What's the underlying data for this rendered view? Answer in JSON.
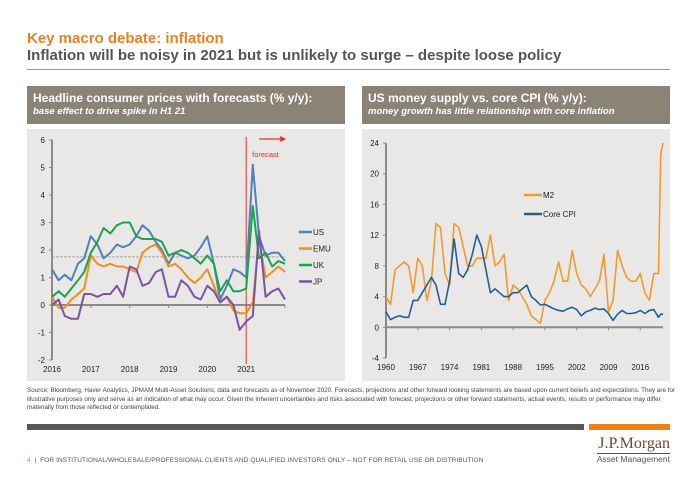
{
  "header": {
    "title": "Key macro debate: inflation",
    "subtitle": "Inflation will be noisy in 2021 but is unlikely to surge – despite loose policy"
  },
  "panels": [
    {
      "heading": "Headline consumer prices with forecasts (% y/y):",
      "subheading": "base effect to drive spike in H1 21"
    },
    {
      "heading": "US money supply vs. core CPI (% y/y):",
      "subheading": "money growth has little relationship with core inflation"
    }
  ],
  "source_note": "Source: Bloomberg, Haver Analytics, JPMAM Multi-Asset Solutions; data and forecasts as of November 2020. Forecasts, projections and other forward looking statements are based upon current beliefs and expectations. They are for illustrative purposes only and serve as an indication of what may occur. Given the inherent uncertainties and risks associated with forecast, projections or other forward statements, actual events, results or performance may differ materially from those reflected or contemplated.",
  "footer": {
    "page_number": "4",
    "separator": "|",
    "disclaimer": "FOR INSTITUTIONAL/WHOLESALE/PROFESSIONAL CLIENTS AND QUALIFIED INVESTORS ONLY – NOT FOR RETAIL USE OR DISTRIBUTION"
  },
  "logo": {
    "brand": "J.P.Morgan",
    "division": "Asset Management"
  },
  "colors": {
    "accent": "#e8821e",
    "panel_header": "#8c8377",
    "panel_bg": "#e9e8e6"
  },
  "chart_data": [
    {
      "type": "line",
      "title": "Headline consumer prices with forecasts (% y/y)",
      "subtitle": "base effect to drive spike in H1 21",
      "xlabel": "",
      "ylabel": "",
      "xlim": [
        2016,
        2022
      ],
      "ylim": [
        -2,
        6
      ],
      "yticks": [
        -2,
        -1,
        0,
        1,
        2,
        3,
        4,
        5,
        6
      ],
      "xticks": [
        2016,
        2017,
        2018,
        2019,
        2020,
        2021
      ],
      "reference_line": {
        "y": 1.75,
        "style": "dashed",
        "color": "#aaaaaa"
      },
      "forecast_marker": {
        "x": 2021.0,
        "label": "forecast",
        "color": "#e8322e"
      },
      "legend": "right",
      "grid": false,
      "x": [
        2016.0,
        2016.17,
        2016.33,
        2016.5,
        2016.67,
        2016.83,
        2017.0,
        2017.17,
        2017.33,
        2017.5,
        2017.67,
        2017.83,
        2018.0,
        2018.17,
        2018.33,
        2018.5,
        2018.67,
        2018.83,
        2019.0,
        2019.17,
        2019.33,
        2019.5,
        2019.67,
        2019.83,
        2020.0,
        2020.17,
        2020.33,
        2020.5,
        2020.67,
        2020.83,
        2021.0,
        2021.17,
        2021.33,
        2021.5,
        2021.67,
        2021.83,
        2022.0
      ],
      "series": [
        {
          "name": "US",
          "color": "#4f81bd",
          "values": [
            1.3,
            0.9,
            1.1,
            0.9,
            1.5,
            1.7,
            2.5,
            2.2,
            1.7,
            1.9,
            2.2,
            2.1,
            2.2,
            2.5,
            2.9,
            2.7,
            2.3,
            2.0,
            1.5,
            1.9,
            1.8,
            1.7,
            1.8,
            2.1,
            2.5,
            1.5,
            0.2,
            0.7,
            1.3,
            1.2,
            1.0,
            5.1,
            2.5,
            1.8,
            1.9,
            1.9,
            1.6
          ]
        },
        {
          "name": "EMU",
          "color": "#f28e1c",
          "values": [
            0.3,
            -0.1,
            -0.1,
            0.2,
            0.4,
            0.6,
            1.8,
            1.5,
            1.4,
            1.5,
            1.4,
            1.4,
            1.3,
            1.2,
            1.9,
            2.1,
            2.2,
            1.9,
            1.4,
            1.5,
            1.3,
            1.0,
            0.8,
            1.0,
            1.3,
            0.7,
            0.1,
            0.3,
            -0.2,
            -0.3,
            -0.3,
            0.1,
            2.4,
            1.0,
            1.2,
            1.4,
            1.2
          ]
        },
        {
          "name": "UK",
          "color": "#19a64a",
          "values": [
            0.3,
            0.5,
            0.3,
            0.6,
            0.9,
            1.2,
            1.9,
            2.3,
            2.8,
            2.6,
            2.9,
            3.0,
            3.0,
            2.5,
            2.4,
            2.4,
            2.4,
            2.3,
            1.8,
            1.9,
            2.0,
            1.9,
            1.7,
            1.5,
            1.8,
            1.5,
            0.5,
            0.9,
            0.5,
            0.5,
            0.6,
            3.6,
            1.7,
            1.9,
            1.4,
            1.6,
            1.5
          ]
        },
        {
          "name": "JP",
          "color": "#7b52a6",
          "values": [
            0.0,
            0.2,
            -0.4,
            -0.5,
            -0.5,
            0.4,
            0.4,
            0.3,
            0.4,
            0.4,
            0.7,
            0.3,
            1.4,
            1.3,
            0.7,
            0.8,
            1.2,
            1.3,
            0.3,
            0.3,
            0.9,
            0.7,
            0.3,
            0.2,
            0.7,
            0.5,
            0.1,
            0.3,
            0.0,
            -0.9,
            -0.6,
            -0.4,
            2.7,
            0.3,
            0.5,
            0.6,
            0.2
          ]
        }
      ]
    },
    {
      "type": "line",
      "title": "US money supply vs. core CPI (% y/y)",
      "subtitle": "money growth has little relationship with core inflation",
      "xlabel": "",
      "ylabel": "",
      "xlim": [
        1960,
        2021
      ],
      "ylim": [
        -4,
        24
      ],
      "yticks": [
        -4,
        0,
        4,
        8,
        12,
        16,
        20,
        24
      ],
      "xticks": [
        1960,
        1967,
        1974,
        1981,
        1988,
        1995,
        2002,
        2009,
        2016
      ],
      "legend": "center",
      "grid": false,
      "x": [
        1960,
        1961,
        1962,
        1963,
        1964,
        1965,
        1966,
        1967,
        1968,
        1969,
        1970,
        1971,
        1972,
        1973,
        1974,
        1975,
        1976,
        1977,
        1978,
        1979,
        1980,
        1981,
        1982,
        1983,
        1984,
        1985,
        1986,
        1987,
        1988,
        1989,
        1990,
        1991,
        1992,
        1993,
        1994,
        1995,
        1996,
        1997,
        1998,
        1999,
        2000,
        2001,
        2002,
        2003,
        2004,
        2005,
        2006,
        2007,
        2008,
        2009,
        2010,
        2011,
        2012,
        2013,
        2014,
        2015,
        2016,
        2017,
        2018,
        2019,
        2020,
        2020.5,
        2021
      ],
      "series": [
        {
          "name": "M2",
          "color": "#f29a2e",
          "values": [
            4.0,
            3.0,
            7.5,
            8.0,
            8.5,
            8.0,
            4.5,
            9.0,
            8.0,
            3.5,
            6.0,
            13.5,
            13.0,
            7.0,
            5.5,
            13.5,
            13.0,
            10.5,
            8.0,
            8.0,
            9.0,
            9.0,
            9.0,
            12.0,
            8.0,
            8.5,
            9.5,
            3.5,
            5.5,
            5.0,
            4.0,
            3.0,
            1.5,
            1.0,
            0.5,
            3.5,
            4.5,
            6.0,
            8.5,
            6.0,
            6.0,
            10.0,
            7.0,
            5.5,
            5.0,
            4.0,
            5.0,
            6.0,
            9.5,
            2.0,
            3.5,
            10.0,
            8.0,
            6.5,
            6.0,
            6.0,
            7.0,
            4.5,
            3.5,
            7.0,
            7.0,
            22.5,
            24.0
          ]
        },
        {
          "name": "Core CPI",
          "color": "#1f5f96",
          "values": [
            2.0,
            1.0,
            1.3,
            1.5,
            1.3,
            1.3,
            3.5,
            3.5,
            4.5,
            5.5,
            6.5,
            5.5,
            3.0,
            3.0,
            6.0,
            11.5,
            7.0,
            6.5,
            7.5,
            9.5,
            12.0,
            10.5,
            7.5,
            4.5,
            5.0,
            4.5,
            4.0,
            4.0,
            4.5,
            4.5,
            5.0,
            5.5,
            4.0,
            3.5,
            2.9,
            3.0,
            2.7,
            2.4,
            2.2,
            2.1,
            2.4,
            2.6,
            2.3,
            1.5,
            2.0,
            2.2,
            2.5,
            2.3,
            2.4,
            1.8,
            0.9,
            1.7,
            2.2,
            1.8,
            1.8,
            1.9,
            2.2,
            1.8,
            2.2,
            2.3,
            1.3,
            1.7,
            1.7
          ]
        }
      ]
    }
  ]
}
